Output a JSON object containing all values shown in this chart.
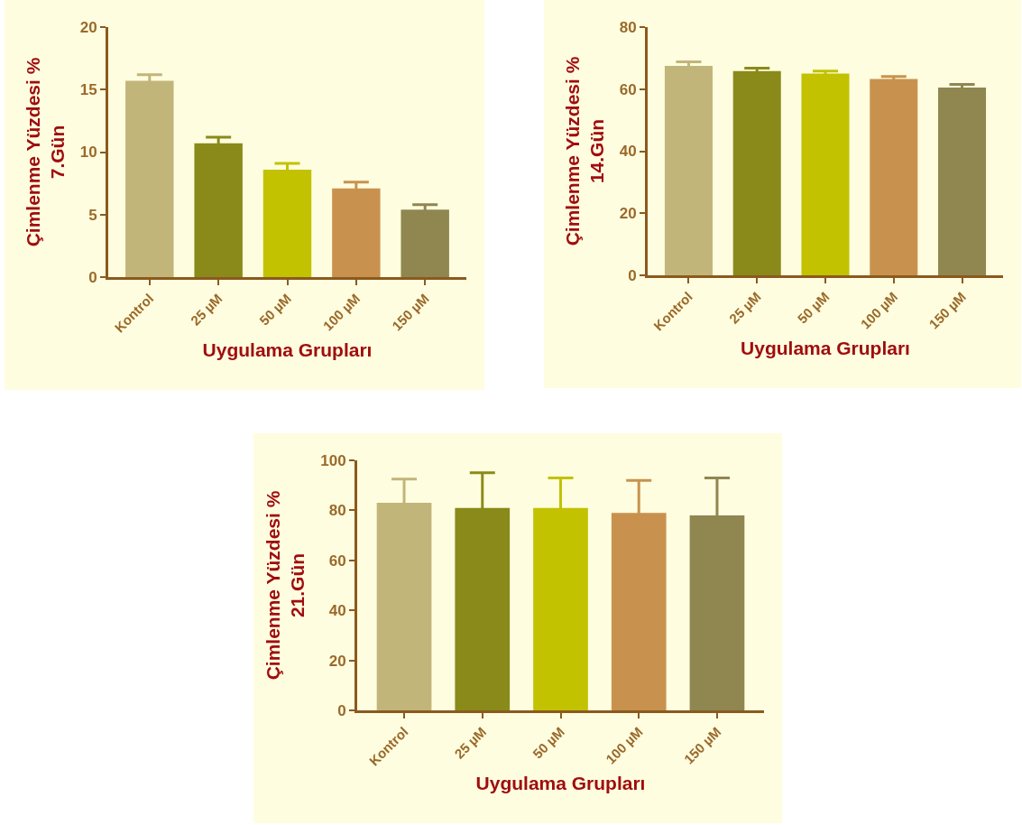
{
  "chart_data": [
    {
      "type": "bar",
      "xlabel": "Uygulama Grupları",
      "ylabel": "Çimlenme Yüzdesi %\n7.Gün",
      "categories": [
        "Kontrol",
        "25 µM",
        "50 µM",
        "100 µM",
        "150 µM"
      ],
      "values": [
        15.7,
        10.7,
        8.6,
        7.1,
        5.4
      ],
      "errors": [
        0.5,
        0.5,
        0.5,
        0.5,
        0.4
      ],
      "colors": [
        "#c2b57a",
        "#8a8a1a",
        "#c2c200",
        "#c8924e",
        "#8f8650"
      ],
      "ylim": [
        0,
        20
      ],
      "yticks": [
        0,
        5,
        10,
        15,
        20
      ],
      "grid": false
    },
    {
      "type": "bar",
      "xlabel": "Uygulama Grupları",
      "ylabel": "Çimlenme Yüzdesi %\n14.Gün",
      "categories": [
        "Kontrol",
        "25 µM",
        "50 µM",
        "100 µM",
        "150 µM"
      ],
      "values": [
        67.5,
        65.8,
        65,
        63.3,
        60.5
      ],
      "errors": [
        1.3,
        1,
        0.8,
        0.8,
        1
      ],
      "colors": [
        "#c2b57a",
        "#8a8a1a",
        "#c2c200",
        "#c8924e",
        "#8f8650"
      ],
      "ylim": [
        0,
        80
      ],
      "yticks": [
        0,
        20,
        40,
        60,
        80
      ],
      "grid": false
    },
    {
      "type": "bar",
      "xlabel": "Uygulama Grupları",
      "ylabel": "Çimlenme Yüzdesi %\n21.Gün",
      "categories": [
        "Kontrol",
        "25 µM",
        "50 µM",
        "100 µM",
        "150 µM"
      ],
      "values": [
        83,
        81,
        81,
        79,
        78
      ],
      "errors": [
        9.5,
        14,
        12,
        13,
        15
      ],
      "colors": [
        "#c2b57a",
        "#8a8a1a",
        "#c2c200",
        "#c8924e",
        "#8f8650"
      ],
      "ylim": [
        0,
        100
      ],
      "yticks": [
        0,
        20,
        40,
        60,
        80,
        100
      ],
      "grid": false
    }
  ]
}
